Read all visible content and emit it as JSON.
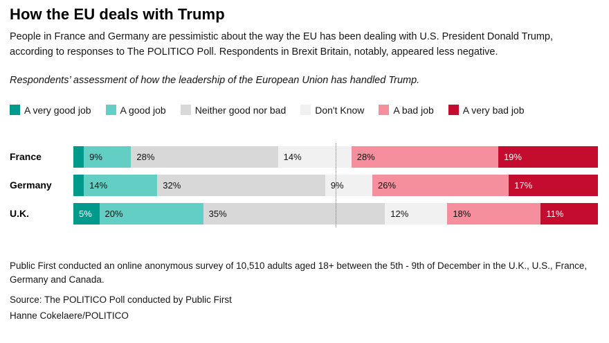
{
  "header": {
    "title": "How the EU deals with Trump",
    "description": "People in France and Germany are pessimistic about the way the EU has been dealing with U.S. President Donald Trump, according to responses to The POLITICO Poll. Respondents in Brexit Britain, notably, appeared less negative.",
    "question": "Respondents’ assessment of how the leadership of the European Union has handled Trump."
  },
  "chart_data": {
    "type": "bar",
    "stacked": true,
    "orientation": "horizontal",
    "categories": [
      "France",
      "Germany",
      "U.K."
    ],
    "series": [
      {
        "name": "A very good job",
        "color": "#009a8c",
        "label_color": "#ffffff",
        "values": [
          2,
          2,
          5
        ],
        "labels": [
          "",
          "",
          "5%"
        ]
      },
      {
        "name": "A good job",
        "color": "#63cfc4",
        "label_color": "#111111",
        "values": [
          9,
          14,
          20
        ],
        "labels": [
          "9%",
          "14%",
          "20%"
        ]
      },
      {
        "name": "Neither good nor bad",
        "color": "#d8d8d8",
        "label_color": "#111111",
        "values": [
          28,
          32,
          35
        ],
        "labels": [
          "28%",
          "32%",
          "35%"
        ]
      },
      {
        "name": "Don't Know",
        "color": "#f1f1f1",
        "label_color": "#111111",
        "values": [
          14,
          9,
          12
        ],
        "labels": [
          "14%",
          "9%",
          "12%"
        ]
      },
      {
        "name": "A bad job",
        "color": "#f58e9d",
        "label_color": "#111111",
        "values": [
          28,
          26,
          18
        ],
        "labels": [
          "28%",
          "26%",
          "18%"
        ]
      },
      {
        "name": "A very bad job",
        "color": "#c40d2e",
        "label_color": "#ffffff",
        "values": [
          19,
          17,
          11
        ],
        "labels": [
          "19%",
          "17%",
          "11%"
        ]
      }
    ],
    "midline_percent": 50,
    "xlim": [
      0,
      100
    ],
    "legend_position": "top",
    "grid": false
  },
  "footer": {
    "methodology": "Public First conducted an online anonymous survey of 10,510 adults aged 18+ between the 5th - 9th of December in the U.K., U.S., France, Germany and Canada.",
    "source": "Source: The POLITICO Poll conducted by Public First",
    "credit": "Hanne Cokelaere/POLITICO"
  }
}
